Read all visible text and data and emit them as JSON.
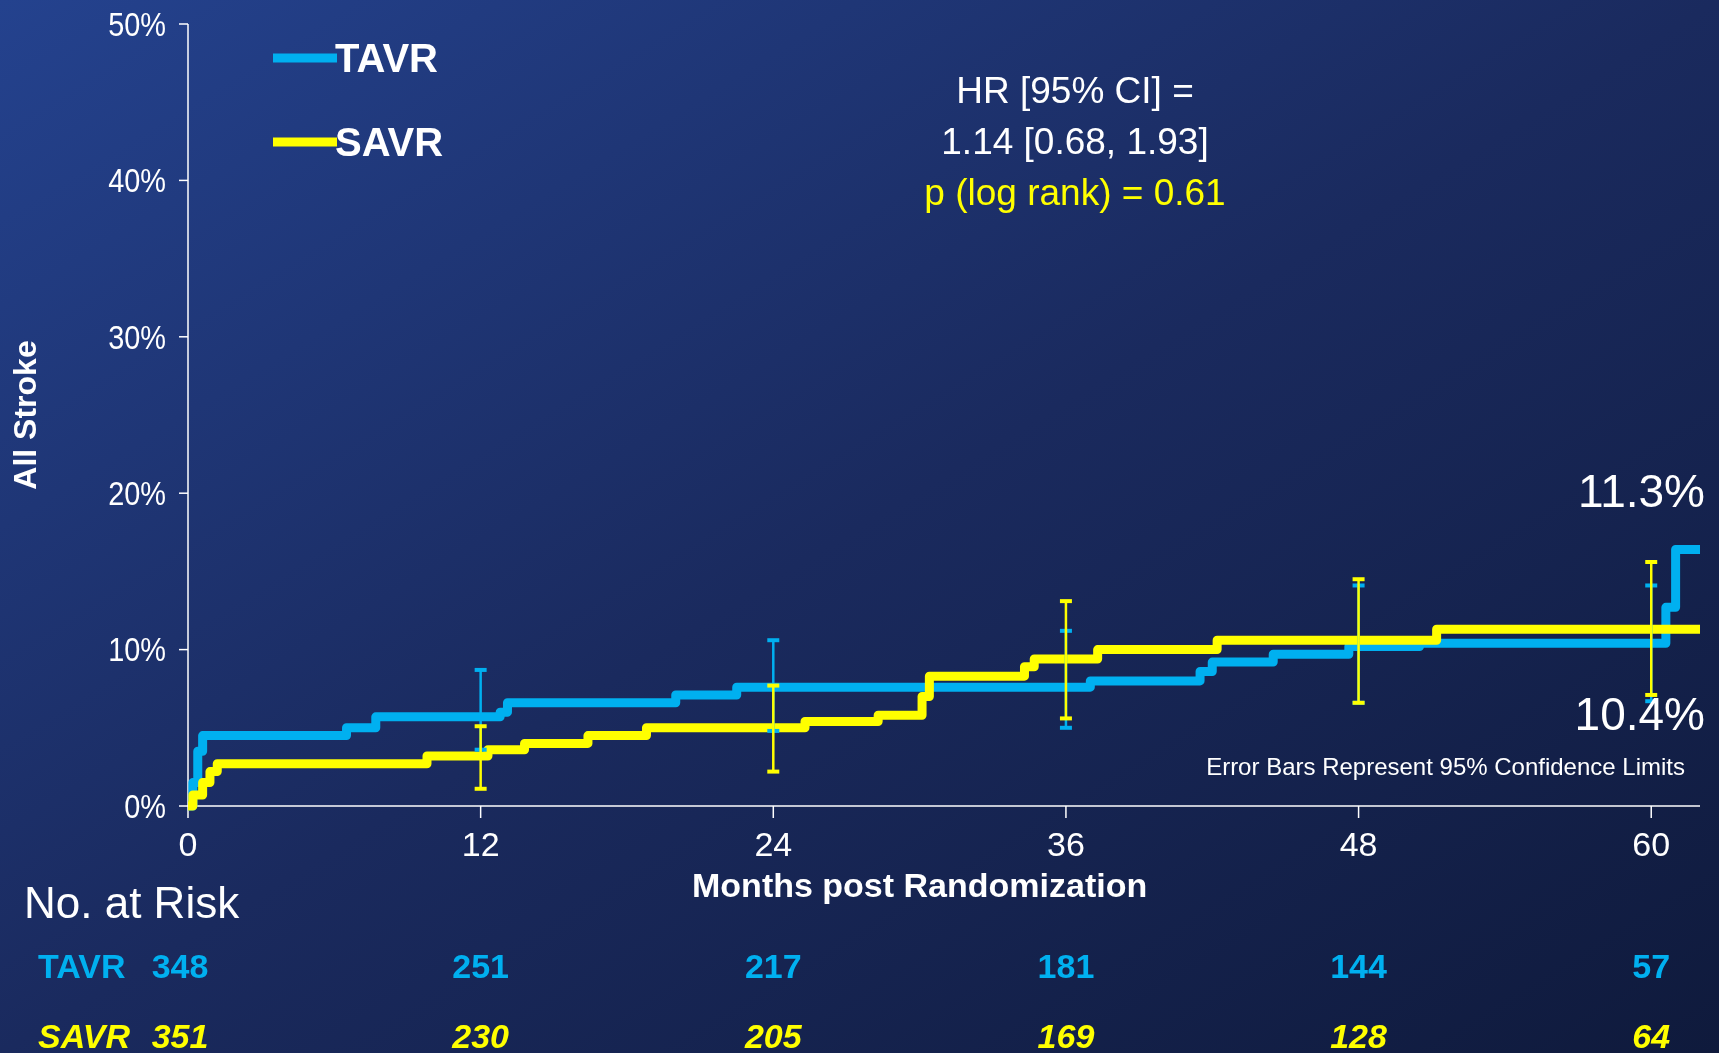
{
  "chart_data": {
    "type": "step",
    "xlabel": "Months post Randomization",
    "ylabel": "All Stroke",
    "xlim": [
      0,
      62
    ],
    "xticks": [
      0,
      12,
      24,
      36,
      48,
      60
    ],
    "ylim": [
      0,
      50
    ],
    "yticks": [
      {
        "value": 0,
        "label": "0%"
      },
      {
        "value": 10,
        "label": "10%"
      },
      {
        "value": 20,
        "label": "20%"
      },
      {
        "value": 30,
        "label": "30%"
      },
      {
        "value": 40,
        "label": "40%"
      },
      {
        "value": 50,
        "label": "50%"
      }
    ],
    "legend": "top left",
    "grid": false,
    "line_style": "solid",
    "marker": "none",
    "series": [
      {
        "name": "TAVR",
        "color": "#00b0f0",
        "x": [
          0,
          0.2,
          0.4,
          0.6,
          6.5,
          7.7,
          12,
          12.8,
          13.1,
          20,
          22.5,
          24,
          36,
          37,
          41.5,
          42,
          44.5,
          47.6,
          48,
          50.5,
          60,
          60.6,
          61,
          62
        ],
        "values": [
          0,
          1.5,
          3.5,
          4.5,
          5.0,
          5.7,
          5.7,
          6.0,
          6.6,
          7.1,
          7.6,
          7.6,
          7.6,
          8.0,
          8.6,
          9.2,
          9.7,
          10.2,
          10.2,
          10.4,
          10.4,
          12.7,
          16.4,
          16.4
        ],
        "errors": [
          null,
          null,
          null,
          null,
          null,
          null,
          [
            3.6,
            8.7
          ],
          null,
          null,
          null,
          null,
          [
            4.8,
            10.6
          ],
          [
            5.0,
            11.2
          ],
          null,
          null,
          null,
          null,
          null,
          [
            6.6,
            14.1
          ],
          null,
          [
            6.7,
            14.1
          ],
          null,
          null,
          null
        ]
      },
      {
        "name": "SAVR",
        "color": "#ffff00",
        "x": [
          0,
          0.2,
          0.6,
          0.9,
          1.2,
          9.8,
          12,
          12.3,
          13.8,
          16.4,
          18.8,
          24,
          25.3,
          28.3,
          30.1,
          30.4,
          34.3,
          34.7,
          36,
          37.3,
          42.2,
          48,
          51.2,
          60,
          62
        ],
        "values": [
          0,
          0.7,
          1.5,
          2.2,
          2.7,
          3.2,
          3.2,
          3.6,
          4.0,
          4.5,
          5.0,
          5.0,
          5.4,
          5.8,
          7.0,
          8.3,
          8.9,
          9.4,
          9.4,
          10.0,
          10.6,
          10.6,
          11.3,
          11.3,
          11.3
        ],
        "errors": [
          null,
          null,
          null,
          null,
          null,
          null,
          [
            1.1,
            5.1
          ],
          null,
          null,
          null,
          null,
          [
            2.2,
            7.7
          ],
          null,
          null,
          null,
          null,
          null,
          null,
          [
            5.6,
            13.1
          ],
          null,
          null,
          [
            6.6,
            14.5
          ],
          null,
          [
            7.1,
            15.6
          ],
          null
        ]
      }
    ],
    "annotations": [
      "HR [95% CI] =",
      "1.14 [0.68, 1.93]",
      "p (log rank) = 0.61",
      "11.3%",
      "10.4%",
      "Error Bars Represent 95% Confidence Limits",
      "No. at Risk",
      "TAVR",
      "348",
      "251",
      "217",
      "181",
      "144",
      "57",
      "SAVR",
      "351",
      "230",
      "205",
      "169",
      "128",
      "64"
    ]
  }
}
